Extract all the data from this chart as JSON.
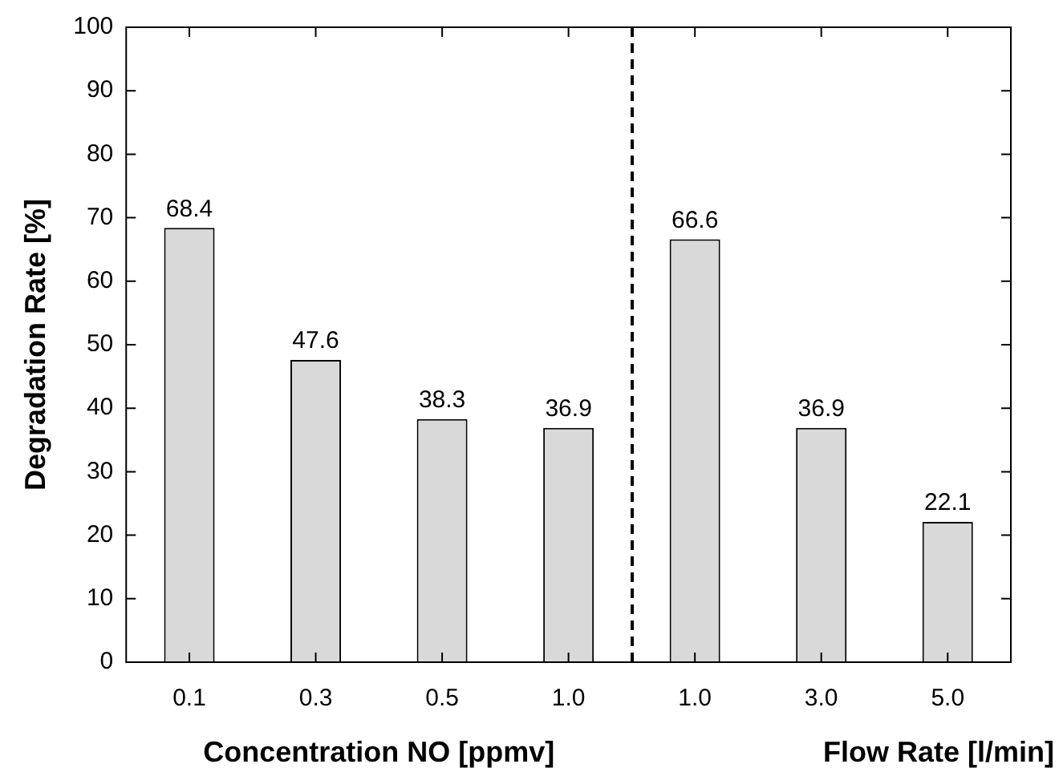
{
  "chart_data": {
    "type": "bar",
    "categories": [
      "0.1",
      "0.3",
      "0.5",
      "1.0",
      "1.0",
      "3.0",
      "5.0"
    ],
    "values": [
      68.4,
      47.6,
      38.3,
      36.9,
      66.6,
      36.9,
      22.1
    ],
    "color": "#d9d9d9",
    "ylim": [
      0,
      100
    ],
    "yticks": [
      0,
      10,
      20,
      30,
      40,
      50,
      60,
      70,
      80,
      90,
      100
    ],
    "ylabel": "Degradation Rate [%]",
    "xlabel": "Concentration NO [ppmv]",
    "annotations": [
      "Flow Rate [l/min]"
    ],
    "data_labels": true,
    "grid": false,
    "legend": false
  }
}
